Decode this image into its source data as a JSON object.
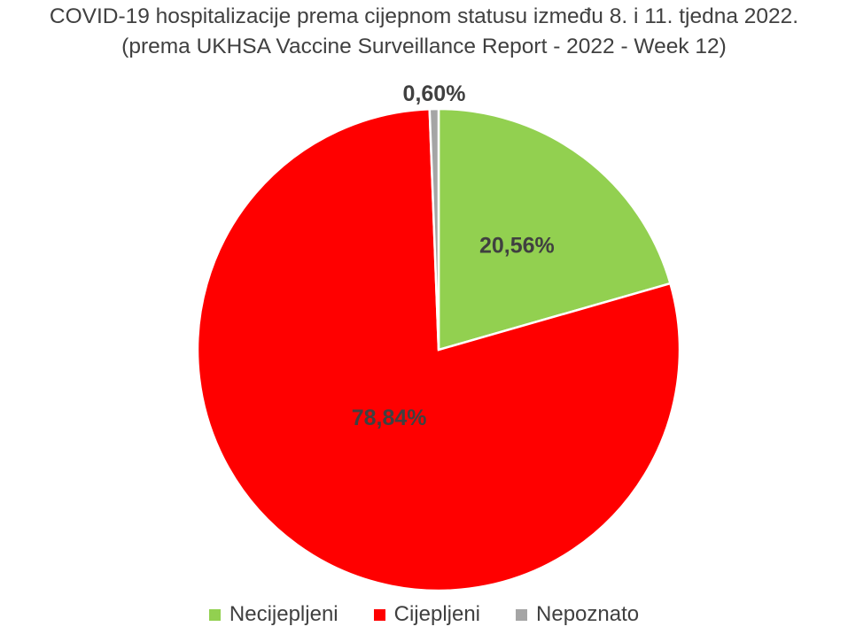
{
  "chart_data": {
    "type": "pie",
    "title": "COVID-19 hospitalizacije prema cijepnom statusu između 8. i 11. tjedna 2022.",
    "subtitle": "(prema UKHSA Vaccine Surveillance Report - 2022 - Week 12)",
    "slices": [
      {
        "label": "Necijepljeni",
        "value": 20.56,
        "data_label": "20,56%",
        "color": "#92d050"
      },
      {
        "label": "Cijepljeni",
        "value": 78.84,
        "data_label": "78,84%",
        "color": "#ff0000"
      },
      {
        "label": "Nepoznato",
        "value": 0.6,
        "data_label": "0,60%",
        "color": "#a5a5a5"
      }
    ],
    "legend_position": "bottom"
  }
}
